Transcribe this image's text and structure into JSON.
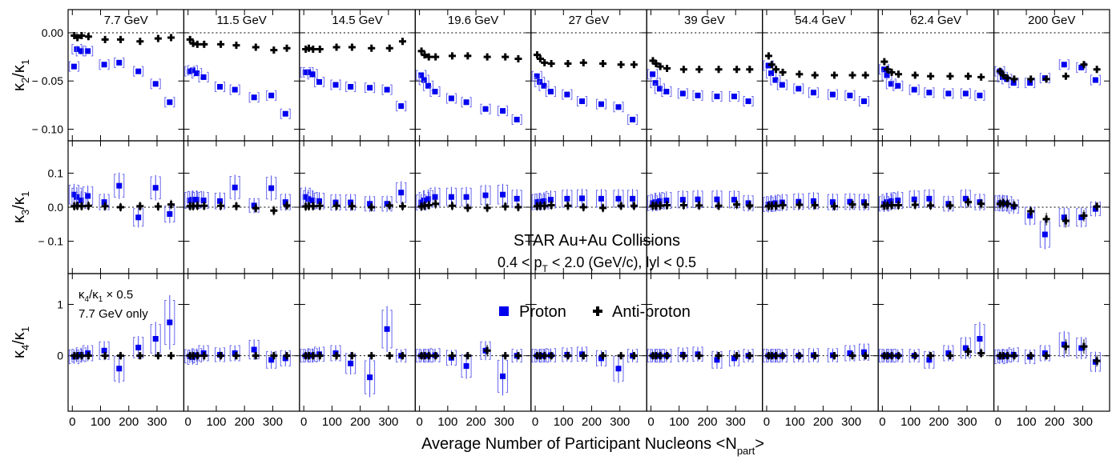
{
  "chart_data": {
    "type": "scatter",
    "title": "STAR Au+Au Collisions",
    "subtitle_parts": [
      "0.4 < p",
      "T",
      " < 2.0 (GeV/c), lyl < 0.5"
    ],
    "xlabel_parts": [
      "Average Number of Participant Nucleons <N",
      "part",
      ">"
    ],
    "panels": [
      "7.7 GeV",
      "11.5 GeV",
      "14.5 GeV",
      "19.6 GeV",
      "27 GeV",
      "39 GeV",
      "54.4 GeV",
      "62.4 GeV",
      "200 GeV"
    ],
    "x_ticks": [
      0,
      100,
      200,
      300
    ],
    "xlim": [
      -15,
      395
    ],
    "rows": [
      {
        "ylabel": "κ2/κ1",
        "ylabel_main": "κ",
        "ylabel_sub1": "2",
        "ylabel_sep": "/κ",
        "ylabel_sub2": "1",
        "ylim": [
          -0.112,
          0.024
        ],
        "y_ticks": [
          {
            "v": 0.0,
            "t": "0.00"
          },
          {
            "v": -0.05,
            "t": "− 0.05"
          },
          {
            "v": -0.1,
            "t": "− 0.10"
          }
        ]
      },
      {
        "ylabel": "κ3/κ1",
        "ylabel_main": "κ",
        "ylabel_sub1": "3",
        "ylabel_sep": "/κ",
        "ylabel_sub2": "1",
        "ylim": [
          -0.195,
          0.195
        ],
        "y_ticks": [
          {
            "v": 0.1,
            "t": "0.1"
          },
          {
            "v": 0.0,
            "t": "0.0"
          },
          {
            "v": -0.1,
            "t": "− 0.1"
          }
        ]
      },
      {
        "ylabel": "κ4/κ1",
        "ylabel_main": "κ",
        "ylabel_sub1": "4",
        "ylabel_sep": "/κ",
        "ylabel_sub2": "1",
        "ylim": [
          -1.08,
          1.6
        ],
        "y_ticks": [
          {
            "v": 1.0,
            "t": "1"
          },
          {
            "v": 0.0,
            "t": "0"
          }
        ]
      }
    ],
    "npart": [
      [
        6,
        16,
        31,
        55,
        113,
        166,
        234,
        295,
        345
      ],
      [
        7,
        18,
        33,
        57,
        116,
        171,
        240,
        304,
        350
      ]
    ],
    "series": [
      {
        "name": "Proton",
        "color": "#0000ee",
        "marker": "square",
        "k2": [
          [
            -0.035,
            -0.017,
            -0.019,
            -0.019,
            -0.033,
            -0.031,
            -0.04,
            -0.053,
            -0.072
          ],
          [
            -0.04,
            -0.039,
            -0.042,
            -0.046,
            -0.056,
            -0.059,
            -0.067,
            -0.065,
            -0.084
          ],
          [
            -0.041,
            -0.041,
            -0.043,
            -0.051,
            -0.054,
            -0.056,
            -0.057,
            -0.059,
            -0.076
          ],
          [
            -0.044,
            -0.049,
            -0.055,
            -0.061,
            -0.068,
            -0.072,
            -0.079,
            -0.081,
            -0.09
          ],
          [
            -0.045,
            -0.051,
            -0.055,
            -0.061,
            -0.064,
            -0.071,
            -0.074,
            -0.077,
            -0.09
          ],
          [
            -0.043,
            -0.052,
            -0.058,
            -0.061,
            -0.063,
            -0.065,
            -0.066,
            -0.066,
            -0.071
          ],
          [
            -0.034,
            -0.042,
            -0.049,
            -0.054,
            -0.058,
            -0.062,
            -0.064,
            -0.065,
            -0.071
          ],
          [
            -0.038,
            -0.044,
            -0.053,
            -0.055,
            -0.059,
            -0.062,
            -0.063,
            -0.063,
            -0.065
          ],
          [
            -0.04,
            -0.046,
            -0.048,
            -0.052,
            -0.052,
            -0.047,
            -0.033,
            -0.036,
            -0.049
          ]
        ],
        "k3": [
          [
            0.037,
            0.03,
            0.02,
            0.033,
            0.015,
            0.063,
            -0.03,
            0.057,
            -0.02
          ],
          [
            0.02,
            0.022,
            0.022,
            0.02,
            0.018,
            0.058,
            0.005,
            0.056,
            0.015
          ],
          [
            0.03,
            0.024,
            0.02,
            0.018,
            0.014,
            0.014,
            0.01,
            0.01,
            0.043
          ],
          [
            0.014,
            0.02,
            0.024,
            0.03,
            0.03,
            0.03,
            0.035,
            0.037,
            0.025
          ],
          [
            0.015,
            0.016,
            0.018,
            0.022,
            0.025,
            0.026,
            0.025,
            0.025,
            0.025
          ],
          [
            0.012,
            0.015,
            0.018,
            0.02,
            0.022,
            0.023,
            0.023,
            0.022,
            0.012
          ],
          [
            0.008,
            0.01,
            0.012,
            0.014,
            0.016,
            0.018,
            0.015,
            0.016,
            0.015
          ],
          [
            0.01,
            0.015,
            0.018,
            0.02,
            0.023,
            0.025,
            0.01,
            0.025,
            0.015
          ],
          [
            0.012,
            0.012,
            0.01,
            0.002,
            -0.025,
            -0.08,
            -0.03,
            -0.03,
            -0.005
          ]
        ],
        "k4": [
          [
            -0.02,
            0.0,
            0.02,
            0.05,
            0.1,
            -0.25,
            0.16,
            0.33,
            0.65
          ],
          [
            -0.01,
            -0.03,
            0.01,
            0.05,
            0.02,
            0.05,
            0.12,
            -0.08,
            -0.05
          ],
          [
            0.0,
            0.0,
            0.01,
            0.03,
            0.05,
            -0.15,
            -0.42,
            0.52,
            0.0
          ],
          [
            0.0,
            0.0,
            0.0,
            0.01,
            -0.04,
            -0.2,
            0.1,
            -0.4,
            0.0
          ],
          [
            0.0,
            0.0,
            0.0,
            0.01,
            0.02,
            0.03,
            -0.05,
            -0.25,
            0.0
          ],
          [
            0.0,
            0.0,
            0.0,
            0.0,
            0.02,
            0.03,
            -0.08,
            -0.05,
            0.0
          ],
          [
            0.0,
            0.0,
            0.0,
            0.0,
            0.0,
            0.01,
            0.01,
            0.05,
            0.07
          ],
          [
            0.0,
            0.0,
            0.0,
            0.0,
            0.0,
            -0.08,
            0.05,
            0.15,
            0.33
          ],
          [
            -0.02,
            -0.01,
            0.0,
            0.02,
            -0.02,
            0.05,
            0.22,
            0.15,
            -0.12
          ]
        ]
      },
      {
        "name": "Anti-proton",
        "color": "#000000",
        "marker": "cross",
        "k2": [
          [
            -0.003,
            -0.005,
            -0.003,
            -0.004,
            -0.007,
            -0.007,
            -0.009,
            -0.006,
            -0.005
          ],
          [
            -0.007,
            -0.011,
            -0.012,
            -0.012,
            -0.012,
            -0.013,
            -0.015,
            -0.018,
            -0.016
          ],
          [
            -0.017,
            -0.016,
            -0.017,
            -0.017,
            -0.015,
            -0.015,
            -0.016,
            -0.016,
            -0.009
          ],
          [
            -0.019,
            -0.023,
            -0.025,
            -0.025,
            -0.024,
            -0.024,
            -0.025,
            -0.025,
            -0.027
          ],
          [
            -0.023,
            -0.027,
            -0.031,
            -0.032,
            -0.032,
            -0.031,
            -0.032,
            -0.033,
            -0.033
          ],
          [
            -0.029,
            -0.032,
            -0.035,
            -0.037,
            -0.038,
            -0.038,
            -0.038,
            -0.038,
            -0.038
          ],
          [
            -0.024,
            -0.033,
            -0.038,
            -0.041,
            -0.043,
            -0.044,
            -0.044,
            -0.044,
            -0.044
          ],
          [
            -0.03,
            -0.038,
            -0.041,
            -0.043,
            -0.044,
            -0.045,
            -0.045,
            -0.045,
            -0.046
          ],
          [
            -0.04,
            -0.044,
            -0.047,
            -0.048,
            -0.048,
            -0.048,
            -0.045,
            -0.033,
            -0.038
          ]
        ],
        "k3": [
          [
            0.003,
            0.004,
            0.003,
            0.004,
            0.003,
            0.0,
            0.003,
            0.002,
            0.008
          ],
          [
            0.003,
            0.003,
            0.004,
            0.004,
            0.004,
            0.003,
            -0.003,
            -0.01,
            0.005
          ],
          [
            0.002,
            0.003,
            0.003,
            0.004,
            0.004,
            0.003,
            0.0,
            0.005,
            0.003
          ],
          [
            0.002,
            0.004,
            0.006,
            0.01,
            0.004,
            -0.002,
            -0.002,
            0.002,
            0.0
          ],
          [
            0.003,
            0.004,
            0.004,
            0.006,
            0.004,
            0.0,
            -0.002,
            0.004,
            0.004
          ],
          [
            0.004,
            0.004,
            0.005,
            0.006,
            0.006,
            0.005,
            0.004,
            0.008,
            0.005
          ],
          [
            0.003,
            0.004,
            0.004,
            0.006,
            0.007,
            0.006,
            0.003,
            0.008,
            0.008
          ],
          [
            0.004,
            0.005,
            0.006,
            0.006,
            0.007,
            0.005,
            0.005,
            0.015,
            0.01
          ],
          [
            0.01,
            0.012,
            0.01,
            0.005,
            -0.012,
            -0.035,
            -0.04,
            -0.025,
            0.002
          ]
        ],
        "k4": [
          [
            0,
            0,
            0,
            0,
            0,
            0,
            0,
            0,
            0
          ],
          [
            0,
            0,
            0,
            0,
            0,
            0,
            0,
            0,
            0
          ],
          [
            0,
            0,
            0,
            0,
            0,
            0,
            0,
            0,
            0
          ],
          [
            0,
            0,
            0,
            0,
            0,
            0,
            0.1,
            0,
            0
          ],
          [
            0,
            0,
            0,
            0,
            0,
            0,
            0,
            0,
            0
          ],
          [
            0,
            0,
            0,
            0,
            0,
            0,
            0,
            0,
            0
          ],
          [
            0,
            0,
            0,
            0,
            0,
            0,
            0,
            0,
            0
          ],
          [
            0,
            0,
            0,
            0,
            0,
            0,
            0,
            0.08,
            0.05
          ],
          [
            0,
            0,
            0,
            0,
            0,
            0,
            0.18,
            0.18,
            -0.1
          ]
        ]
      }
    ],
    "legend_entries": [
      "Proton",
      "Anti-proton"
    ],
    "legend_placement": "bottom row, center",
    "annotation_lines": [
      "κ4/κ1 × 0.5",
      "7.7 GeV only"
    ],
    "ann_main": "κ",
    "ann_sub1": "4",
    "ann_sep": "/κ",
    "ann_sub2": "1",
    "ann_rest": " × 0.5",
    "zero_line": "dotted",
    "grid": false
  }
}
